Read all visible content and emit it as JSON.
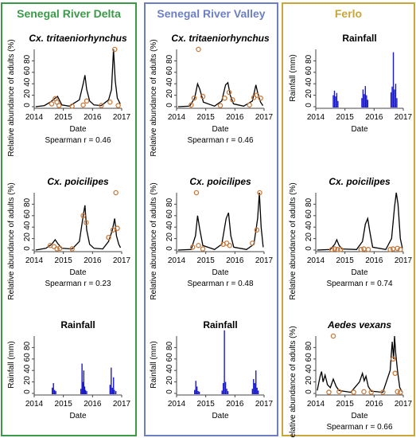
{
  "panels": [
    {
      "title": "Senegal River Delta",
      "color": "#3a9a48"
    },
    {
      "title": "Senegal River Valley",
      "color": "#6d7fc4"
    },
    {
      "title": "Ferlo",
      "color": "#c9a53a"
    }
  ],
  "colors": {
    "line": "#000000",
    "points": "#c87a3c",
    "rain": "#1a1acc",
    "axis": "#444444"
  },
  "chart_data": [
    {
      "type": "line",
      "title": "Cx. tritaeniorhynchus",
      "xlabel": "Date",
      "ylabel": "Relative abundance of adults (%)",
      "xticks": [
        "2014",
        "2015",
        "2016",
        "2017"
      ],
      "xlim": [
        2014,
        2017
      ],
      "yticks": [
        0,
        20,
        40,
        60,
        80
      ],
      "ylim": [
        0,
        100
      ],
      "annotation": "Spearman r = 0.46",
      "series": [
        {
          "kind": "line",
          "x": [
            2014.05,
            2014.35,
            2014.55,
            2014.7,
            2014.8,
            2014.95,
            2015.2,
            2015.55,
            2015.68,
            2015.74,
            2015.8,
            2015.9,
            2016.05,
            2016.3,
            2016.55,
            2016.65,
            2016.72,
            2016.78,
            2016.85,
            2016.95
          ],
          "y": [
            0,
            2,
            8,
            14,
            18,
            3,
            1,
            12,
            40,
            55,
            30,
            10,
            3,
            2,
            12,
            30,
            100,
            45,
            15,
            5
          ]
        },
        {
          "kind": "points",
          "x": [
            2014.6,
            2014.72,
            2014.78,
            2014.85,
            2015.3,
            2015.68,
            2015.8,
            2016.3,
            2016.6,
            2016.76,
            2016.88
          ],
          "y": [
            5,
            14,
            8,
            2,
            1,
            3,
            10,
            2,
            8,
            100,
            2
          ]
        }
      ]
    },
    {
      "type": "line",
      "title": "Cx. poicilipes",
      "xlabel": "Date",
      "ylabel": "Relative abundance of adults (%)",
      "xticks": [
        "2014",
        "2015",
        "2016",
        "2017"
      ],
      "xlim": [
        2014,
        2017
      ],
      "yticks": [
        0,
        20,
        40,
        60,
        80
      ],
      "ylim": [
        0,
        100
      ],
      "annotation": "Spearman r = 0.23",
      "series": [
        {
          "kind": "line",
          "x": [
            2014.05,
            2014.4,
            2014.6,
            2014.72,
            2014.8,
            2014.95,
            2015.3,
            2015.55,
            2015.68,
            2015.74,
            2015.8,
            2015.9,
            2016.05,
            2016.35,
            2016.55,
            2016.68,
            2016.76,
            2016.82,
            2016.9,
            2016.96
          ],
          "y": [
            0,
            3,
            10,
            18,
            12,
            3,
            2,
            15,
            60,
            78,
            35,
            10,
            3,
            2,
            15,
            35,
            55,
            25,
            10,
            4
          ]
        },
        {
          "kind": "points",
          "x": [
            2014.55,
            2014.68,
            2014.78,
            2014.88,
            2015.3,
            2015.68,
            2015.78,
            2016.55,
            2016.7,
            2016.8,
            2016.85
          ],
          "y": [
            8,
            6,
            2,
            3,
            2,
            60,
            48,
            22,
            35,
            100,
            38
          ]
        }
      ]
    },
    {
      "type": "bar",
      "title": "Rainfall",
      "xlabel": "Date",
      "ylabel": "Rainfall (mm)",
      "xticks": [
        "2014",
        "2015",
        "2016",
        "2017"
      ],
      "xlim": [
        2014,
        2017
      ],
      "yticks": [
        0,
        20,
        40,
        60,
        80
      ],
      "ylim": [
        0,
        100
      ],
      "series": [
        {
          "kind": "bars",
          "x": [
            2014.62,
            2014.66,
            2014.7,
            2014.74,
            2015.6,
            2015.64,
            2015.67,
            2015.7,
            2015.73,
            2015.76,
            2015.8,
            2016.6,
            2016.64,
            2016.68,
            2016.72,
            2016.75,
            2016.8
          ],
          "y": [
            10,
            18,
            6,
            4,
            8,
            52,
            20,
            40,
            12,
            6,
            4,
            15,
            45,
            10,
            28,
            6,
            4
          ]
        }
      ]
    },
    {
      "type": "line",
      "title": "Cx. tritaeniorhynchus",
      "xlabel": "Date",
      "ylabel": "Relative abundance of adults (%)",
      "xticks": [
        "2014",
        "2015",
        "2016",
        "2017"
      ],
      "xlim": [
        2014,
        2017
      ],
      "yticks": [
        0,
        20,
        40,
        60,
        80
      ],
      "ylim": [
        0,
        100
      ],
      "annotation": "Spearman r = 0.46",
      "series": [
        {
          "kind": "line",
          "x": [
            2014.05,
            2014.45,
            2014.62,
            2014.72,
            2014.8,
            2014.92,
            2015.3,
            2015.55,
            2015.68,
            2015.76,
            2015.84,
            2015.95,
            2016.3,
            2016.6,
            2016.72,
            2016.8,
            2016.88,
            2016.96
          ],
          "y": [
            0,
            1,
            15,
            40,
            30,
            8,
            1,
            10,
            38,
            42,
            20,
            5,
            1,
            10,
            38,
            20,
            8,
            2
          ]
        },
        {
          "kind": "points",
          "x": [
            2014.5,
            2014.6,
            2014.75,
            2014.9,
            2015.5,
            2015.65,
            2015.8,
            2015.92,
            2016.5,
            2016.65,
            2016.75,
            2016.88
          ],
          "y": [
            3,
            15,
            100,
            18,
            2,
            15,
            25,
            12,
            3,
            16,
            20,
            15
          ]
        }
      ]
    },
    {
      "type": "line",
      "title": "Cx. poicilipes",
      "xlabel": "Date",
      "ylabel": "Relative abundance of adults (%)",
      "xticks": [
        "2014",
        "2015",
        "2016",
        "2017"
      ],
      "xlim": [
        2014,
        2017
      ],
      "yticks": [
        0,
        20,
        40,
        60,
        80
      ],
      "ylim": [
        0,
        100
      ],
      "annotation": "Spearman r = 0.48",
      "series": [
        {
          "kind": "line",
          "x": [
            2014.05,
            2014.5,
            2014.65,
            2014.72,
            2014.8,
            2014.9,
            2015.3,
            2015.55,
            2015.7,
            2015.78,
            2015.86,
            2015.96,
            2016.4,
            2016.65,
            2016.78,
            2016.84,
            2016.9,
            2016.97
          ],
          "y": [
            0,
            1,
            25,
            60,
            35,
            8,
            1,
            10,
            55,
            65,
            25,
            5,
            1,
            10,
            55,
            100,
            40,
            5
          ]
        },
        {
          "kind": "points",
          "x": [
            2014.55,
            2014.68,
            2014.75,
            2014.9,
            2015.6,
            2015.72,
            2015.82,
            2016.6,
            2016.75,
            2016.85
          ],
          "y": [
            5,
            100,
            8,
            2,
            10,
            12,
            8,
            12,
            35,
            100
          ]
        }
      ]
    },
    {
      "type": "bar",
      "title": "Rainfall",
      "xlabel": "Date",
      "ylabel": "Rainfall (mm)",
      "xticks": [
        "2014",
        "2015",
        "2016",
        "2017"
      ],
      "xlim": [
        2014,
        2017
      ],
      "yticks": [
        0,
        20,
        40,
        60,
        80
      ],
      "ylim": [
        0,
        100
      ],
      "series": [
        {
          "kind": "bars",
          "x": [
            2014.62,
            2014.66,
            2014.7,
            2014.74,
            2014.78,
            2015.56,
            2015.6,
            2015.64,
            2015.68,
            2015.72,
            2015.76,
            2016.6,
            2016.64,
            2016.68,
            2016.72,
            2016.76,
            2016.8
          ],
          "y": [
            6,
            22,
            12,
            4,
            3,
            5,
            18,
            110,
            20,
            8,
            4,
            8,
            25,
            18,
            40,
            10,
            5
          ]
        }
      ]
    },
    {
      "type": "bar",
      "title": "Rainfall",
      "xlabel": "Date",
      "ylabel": "Rainfall (mm)",
      "xticks": [
        "2014",
        "2015",
        "2016",
        "2017"
      ],
      "xlim": [
        2014,
        2017
      ],
      "yticks": [
        0,
        20,
        40,
        60,
        80
      ],
      "ylim": [
        0,
        100
      ],
      "series": [
        {
          "kind": "bars",
          "x": [
            2014.6,
            2014.64,
            2014.68,
            2014.72,
            2014.76,
            2015.58,
            2015.62,
            2015.66,
            2015.7,
            2015.74,
            2015.78,
            2016.58,
            2016.62,
            2016.66,
            2016.7,
            2016.74,
            2016.78
          ],
          "y": [
            20,
            28,
            18,
            24,
            10,
            15,
            30,
            22,
            36,
            20,
            12,
            25,
            35,
            95,
            30,
            40,
            15
          ]
        }
      ]
    },
    {
      "type": "line",
      "title": "Cx. poicilipes",
      "xlabel": "Date",
      "ylabel": "Relative abundance of adults (%)",
      "xticks": [
        "2014",
        "2015",
        "2016",
        "2017"
      ],
      "xlim": [
        2014,
        2017
      ],
      "yticks": [
        0,
        20,
        40,
        60,
        80
      ],
      "ylim": [
        0,
        100
      ],
      "annotation": "Spearman r = 0.74",
      "series": [
        {
          "kind": "line",
          "x": [
            2014.05,
            2014.5,
            2014.65,
            2014.72,
            2014.8,
            2014.9,
            2015.4,
            2015.6,
            2015.7,
            2015.78,
            2015.86,
            2015.95,
            2016.4,
            2016.6,
            2016.7,
            2016.76,
            2016.82,
            2016.9,
            2016.97
          ],
          "y": [
            0,
            1,
            10,
            18,
            8,
            2,
            1,
            15,
            45,
            55,
            30,
            5,
            1,
            20,
            75,
            100,
            80,
            20,
            3
          ]
        },
        {
          "kind": "points",
          "x": [
            2014.55,
            2014.65,
            2014.75,
            2014.85,
            2015.55,
            2015.65,
            2015.8,
            2016.55,
            2016.65,
            2016.8,
            2016.9
          ],
          "y": [
            1,
            2,
            1,
            1,
            1,
            2,
            1,
            1,
            2,
            3,
            1
          ]
        }
      ]
    },
    {
      "type": "line",
      "title": "Aedes vexans",
      "xlabel": "Date",
      "ylabel": "Relative abundance of adults (%)",
      "xticks": [
        "2014",
        "2015",
        "2016",
        "2017"
      ],
      "xlim": [
        2014,
        2017
      ],
      "yticks": [
        0,
        20,
        40,
        60,
        80
      ],
      "ylim": [
        0,
        100
      ],
      "annotation": "Spearman r = 0.66",
      "series": [
        {
          "kind": "line",
          "x": [
            2014.05,
            2014.15,
            2014.2,
            2014.25,
            2014.32,
            2014.4,
            2014.5,
            2014.6,
            2014.7,
            2014.8,
            2015.2,
            2015.5,
            2015.6,
            2015.66,
            2015.72,
            2015.8,
            2015.9,
            2016.3,
            2016.55,
            2016.62,
            2016.67,
            2016.7,
            2016.74,
            2016.8,
            2016.88,
            2016.96
          ],
          "y": [
            5,
            30,
            38,
            20,
            32,
            15,
            10,
            25,
            12,
            5,
            2,
            20,
            35,
            22,
            30,
            12,
            4,
            2,
            40,
            90,
            60,
            100,
            70,
            40,
            10,
            3
          ]
        },
        {
          "kind": "points",
          "x": [
            2014.45,
            2014.6,
            2014.8,
            2015.3,
            2015.65,
            2015.9,
            2016.3,
            2016.65,
            2016.72,
            2016.8,
            2016.9
          ],
          "y": [
            2,
            100,
            3,
            2,
            3,
            2,
            2,
            60,
            35,
            3,
            2
          ]
        }
      ]
    }
  ]
}
